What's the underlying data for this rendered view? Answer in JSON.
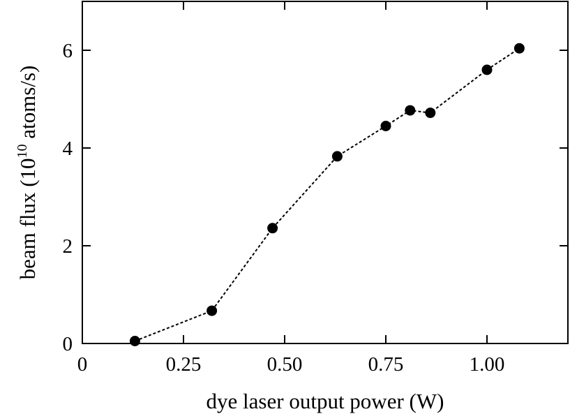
{
  "chart_data": {
    "type": "scatter",
    "title": "",
    "xlabel": "dye laser output power (W)",
    "ylabel": {
      "prefix": "beam flux (10",
      "exponent": "10",
      "suffix": " atoms/s)"
    },
    "xlim": [
      0,
      1.2
    ],
    "ylim": [
      0,
      7
    ],
    "x_ticks": [
      0,
      0.25,
      0.5,
      0.75,
      1.0
    ],
    "x_tick_labels": [
      "0",
      "0.25",
      "0.50",
      "0.75",
      "1.00"
    ],
    "y_ticks": [
      0,
      2,
      4,
      6
    ],
    "y_tick_labels": [
      "0",
      "2",
      "4",
      "6"
    ],
    "grid": false,
    "series": [
      {
        "line_style": "dotted",
        "marker": "filled-circle",
        "color": "#000000",
        "x": [
          0.13,
          0.32,
          0.47,
          0.63,
          0.75,
          0.81,
          0.86,
          1.0,
          1.08
        ],
        "y": [
          0.05,
          0.67,
          2.36,
          3.83,
          4.45,
          4.77,
          4.72,
          5.6,
          6.04
        ]
      }
    ]
  }
}
